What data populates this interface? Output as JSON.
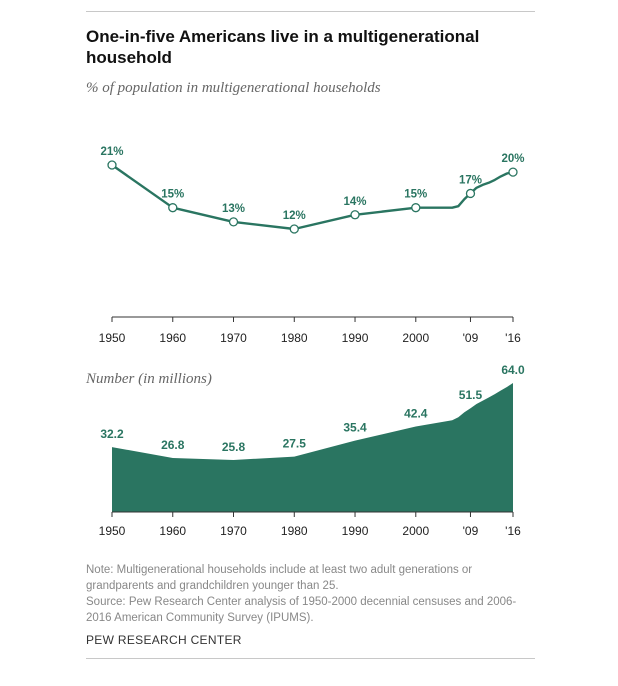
{
  "title": "One-in-five Americans live in a multigenerational household",
  "top_chart_label": "% of population in multigenerational households",
  "bottom_chart_label": "Number (in millions)",
  "note": "Note: Multigenerational households include at least two adult generations or grandparents and grandchildren younger than 25.",
  "source": "Source: Pew Research Center analysis of 1950-2000 decennial censuses and 2006-2016 American Community Survey (IPUMS).",
  "org": "PEW RESEARCH CENTER",
  "colors": {
    "accent": "#2a7561"
  },
  "chart_data": [
    {
      "type": "line",
      "title": "% of population in multigenerational households",
      "unit": "%",
      "x_ticks": [
        "1950",
        "1960",
        "1970",
        "1980",
        "1990",
        "2000",
        "'09",
        "'16"
      ],
      "points": [
        {
          "x": 1950,
          "y": 21,
          "label": "21%"
        },
        {
          "x": 1960,
          "y": 15,
          "label": "15%"
        },
        {
          "x": 1970,
          "y": 13,
          "label": "13%"
        },
        {
          "x": 1980,
          "y": 12,
          "label": "12%"
        },
        {
          "x": 1990,
          "y": 14,
          "label": "14%"
        },
        {
          "x": 2000,
          "y": 15,
          "label": "15%"
        },
        {
          "x": 2009,
          "y": 17,
          "label": "17%"
        },
        {
          "x": 2016,
          "y": 20,
          "label": "20%"
        }
      ],
      "series_path": [
        [
          1950,
          21
        ],
        [
          1960,
          15
        ],
        [
          1970,
          13
        ],
        [
          1980,
          12
        ],
        [
          1990,
          14
        ],
        [
          2000,
          15
        ],
        [
          2006,
          15
        ],
        [
          2007,
          15.2
        ],
        [
          2008,
          16.2
        ],
        [
          2009,
          17
        ],
        [
          2010,
          17.8
        ],
        [
          2011,
          18.2
        ],
        [
          2012,
          18.5
        ],
        [
          2013,
          18.9
        ],
        [
          2014,
          19.4
        ],
        [
          2015,
          19.8
        ],
        [
          2016,
          20
        ]
      ],
      "markers": true,
      "grid": false
    },
    {
      "type": "area",
      "title": "Number (in millions)",
      "unit": "millions",
      "x_ticks": [
        "1950",
        "1960",
        "1970",
        "1980",
        "1990",
        "2000",
        "'09",
        "'16"
      ],
      "points": [
        {
          "x": 1950,
          "y": 32.2,
          "label": "32.2"
        },
        {
          "x": 1960,
          "y": 26.8,
          "label": "26.8"
        },
        {
          "x": 1970,
          "y": 25.8,
          "label": "25.8"
        },
        {
          "x": 1980,
          "y": 27.5,
          "label": "27.5"
        },
        {
          "x": 1990,
          "y": 35.4,
          "label": "35.4"
        },
        {
          "x": 2000,
          "y": 42.4,
          "label": "42.4"
        },
        {
          "x": 2009,
          "y": 51.5,
          "label": "51.5"
        },
        {
          "x": 2016,
          "y": 64.0,
          "label": "64.0"
        }
      ],
      "series_path": [
        [
          1950,
          32.2
        ],
        [
          1960,
          26.8
        ],
        [
          1970,
          25.8
        ],
        [
          1980,
          27.5
        ],
        [
          1990,
          35.4
        ],
        [
          2000,
          42.4
        ],
        [
          2006,
          45.5
        ],
        [
          2007,
          47
        ],
        [
          2008,
          49.5
        ],
        [
          2009,
          51.5
        ],
        [
          2010,
          53.6
        ],
        [
          2011,
          55.2
        ],
        [
          2012,
          56.8
        ],
        [
          2013,
          58.5
        ],
        [
          2014,
          60.3
        ],
        [
          2015,
          62
        ],
        [
          2016,
          64.0
        ]
      ],
      "grid": false
    }
  ]
}
